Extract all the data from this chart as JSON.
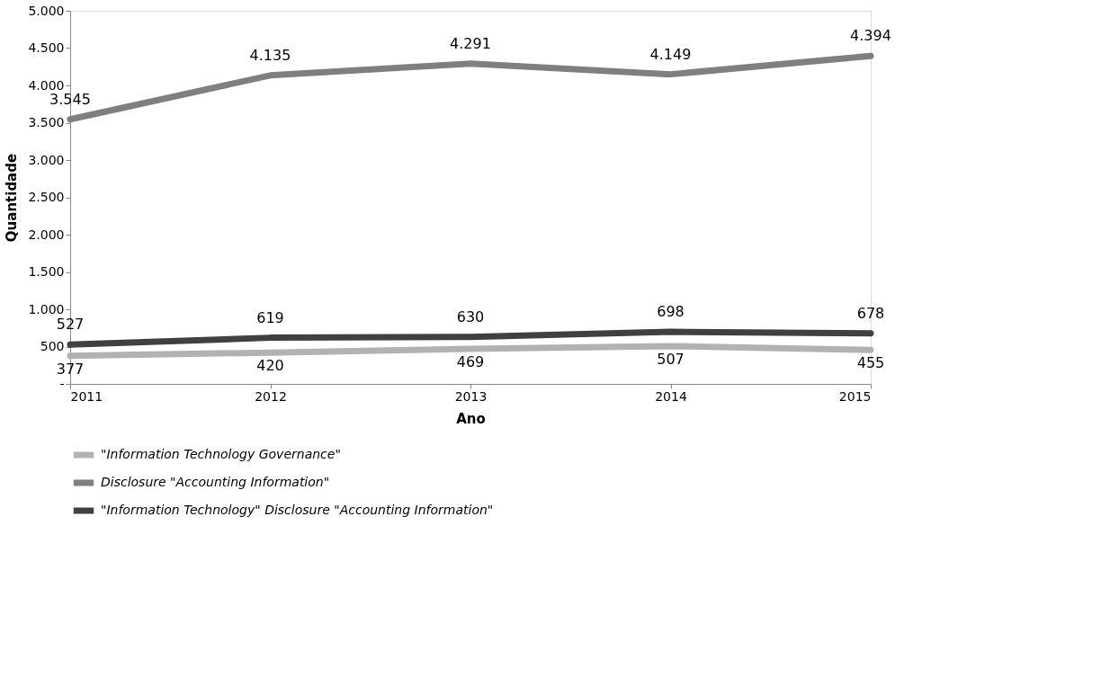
{
  "chart_data": {
    "type": "line",
    "xlabel": "Ano",
    "ylabel": "Quantidade",
    "categories": [
      "2011",
      "2012",
      "2013",
      "2014",
      "2015"
    ],
    "ylim": [
      0,
      5000
    ],
    "yticks": [
      {
        "value": 0,
        "label": "-"
      },
      500,
      {
        "value": 1000,
        "label": "1.000"
      },
      {
        "value": 1500,
        "label": "1.500"
      },
      {
        "value": 2000,
        "label": "2.000"
      },
      {
        "value": 2500,
        "label": "2.500"
      },
      {
        "value": 3000,
        "label": "3.000"
      },
      {
        "value": 3500,
        "label": "3.500"
      },
      {
        "value": 4000,
        "label": "4.000"
      },
      {
        "value": 4500,
        "label": "4.500"
      },
      {
        "value": 5000,
        "label": "5.000"
      }
    ],
    "grid": false,
    "legend": "bottom",
    "marker": "none",
    "line_style": "solid",
    "series": [
      {
        "name": "\"Information Technology Governance\"",
        "color": "#b2b2b2",
        "values": [
          377,
          420,
          469,
          507,
          455
        ],
        "value_labels": [
          "377",
          "420",
          "469",
          "507",
          "455"
        ]
      },
      {
        "name": "Disclosure \"Accounting Information\"",
        "color": "#7f7f7f",
        "values": [
          3545,
          4135,
          4291,
          4149,
          4394
        ],
        "value_labels": [
          "3.545",
          "4.135",
          "4.291",
          "4.149",
          "4.394"
        ]
      },
      {
        "name": "\"Information Technology\" Disclosure \"Accounting Information\"",
        "color": "#404040",
        "values": [
          527,
          619,
          630,
          698,
          678
        ],
        "value_labels": [
          "527",
          "619",
          "630",
          "698",
          "678"
        ]
      }
    ]
  }
}
